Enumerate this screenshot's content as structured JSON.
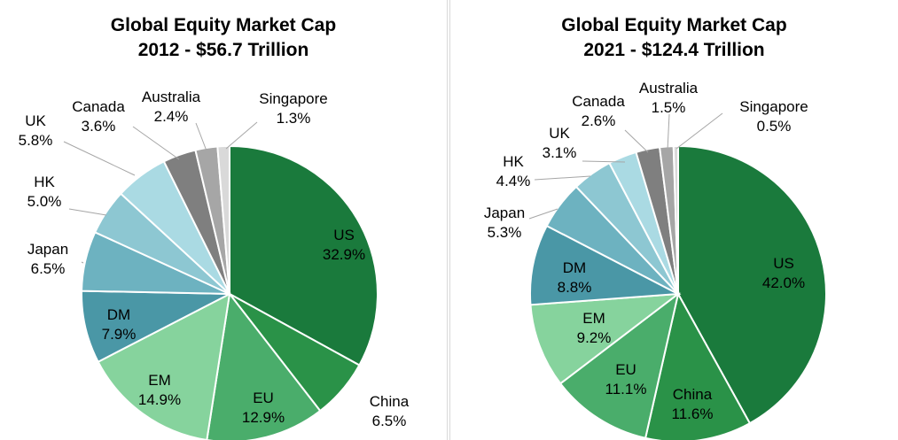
{
  "chart_data": [
    {
      "type": "pie",
      "title": [
        "Global Equity Market Cap",
        "2012 - $56.7 Trillion"
      ],
      "slices": [
        {
          "name": "US",
          "value": 32.9,
          "label": "32.9%",
          "color": "#1a7a3c"
        },
        {
          "name": "China",
          "value": 6.5,
          "label": "6.5%",
          "color": "#2a9248"
        },
        {
          "name": "EU",
          "value": 12.9,
          "label": "12.9%",
          "color": "#4aad6b"
        },
        {
          "name": "EM",
          "value": 14.9,
          "label": "14.9%",
          "color": "#86d39d"
        },
        {
          "name": "DM",
          "value": 7.9,
          "label": "7.9%",
          "color": "#4a97a6"
        },
        {
          "name": "Japan",
          "value": 6.5,
          "label": "6.5%",
          "color": "#6db2c0"
        },
        {
          "name": "HK",
          "value": 5.0,
          "label": "5.0%",
          "color": "#8dc7d2"
        },
        {
          "name": "UK",
          "value": 5.8,
          "label": "5.8%",
          "color": "#aadae3"
        },
        {
          "name": "Canada",
          "value": 3.6,
          "label": "3.6%",
          "color": "#7f7f7f"
        },
        {
          "name": "Australia",
          "value": 2.4,
          "label": "2.4%",
          "color": "#a6a6a6"
        },
        {
          "name": "Singapore",
          "value": 1.3,
          "label": "1.3%",
          "color": "#d9d9d9"
        }
      ]
    },
    {
      "type": "pie",
      "title": [
        "Global Equity Market Cap",
        "2021 - $124.4 Trillion"
      ],
      "slices": [
        {
          "name": "US",
          "value": 42.0,
          "label": "42.0%",
          "color": "#1a7a3c"
        },
        {
          "name": "China",
          "value": 11.6,
          "label": "11.6%",
          "color": "#2a9248"
        },
        {
          "name": "EU",
          "value": 11.1,
          "label": "11.1%",
          "color": "#4aad6b"
        },
        {
          "name": "EM",
          "value": 9.2,
          "label": "9.2%",
          "color": "#86d39d"
        },
        {
          "name": "DM",
          "value": 8.8,
          "label": "8.8%",
          "color": "#4a97a6"
        },
        {
          "name": "Japan",
          "value": 5.3,
          "label": "5.3%",
          "color": "#6db2c0"
        },
        {
          "name": "HK",
          "value": 4.4,
          "label": "4.4%",
          "color": "#8dc7d2"
        },
        {
          "name": "UK",
          "value": 3.1,
          "label": "3.1%",
          "color": "#aadae3"
        },
        {
          "name": "Canada",
          "value": 2.6,
          "label": "2.6%",
          "color": "#7f7f7f"
        },
        {
          "name": "Australia",
          "value": 1.5,
          "label": "1.5%",
          "color": "#a6a6a6"
        },
        {
          "name": "Singapore",
          "value": 0.5,
          "label": "0.5%",
          "color": "#d9d9d9"
        }
      ]
    }
  ]
}
